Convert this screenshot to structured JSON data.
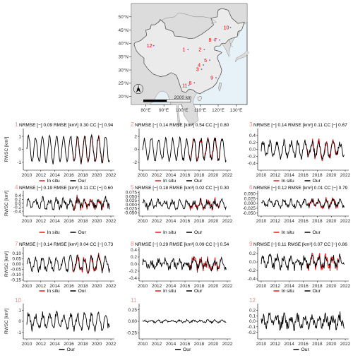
{
  "map": {
    "lat_labels": [
      "50°N",
      "45°N",
      "40°N",
      "35°N",
      "30°N",
      "25°N",
      "20°N"
    ],
    "lon_labels": [
      "80°E",
      "90°E",
      "100°E",
      "110°E",
      "120°E",
      "130°E"
    ],
    "scale_label": "2000 km",
    "north_label": "N",
    "sites": [
      {
        "id": "1",
        "lon": 101.0,
        "lat": 37.0
      },
      {
        "id": "2",
        "lon": 110.0,
        "lat": 37.0
      },
      {
        "id": "3",
        "lon": 108.5,
        "lat": 29.6
      },
      {
        "id": "4",
        "lon": 109.5,
        "lat": 31.2
      },
      {
        "id": "5",
        "lon": 113.0,
        "lat": 33.0
      },
      {
        "id": "6",
        "lon": 104.5,
        "lat": 24.5
      },
      {
        "id": "7",
        "lon": 118.5,
        "lat": 40.6
      },
      {
        "id": "8",
        "lon": 115.5,
        "lat": 40.6
      },
      {
        "id": "9",
        "lon": 116.5,
        "lat": 26.4
      },
      {
        "id": "10",
        "lon": 124.5,
        "lat": 45.3
      },
      {
        "id": "11",
        "lon": 101.5,
        "lat": 23.5
      },
      {
        "id": "12",
        "lon": 82.0,
        "lat": 38.5
      }
    ]
  },
  "axis_label": "RWSC [km³]",
  "x_ticks": [
    "2010",
    "2012",
    "2014",
    "2016",
    "2018",
    "2020",
    "2022"
  ],
  "legend": {
    "insitu": "In situ",
    "our": "Our"
  },
  "colors": {
    "insitu": "#e41a1c",
    "our": "#000000",
    "site_number": "#e08f8f"
  },
  "chart_data": [
    {
      "id": "1",
      "type": "line",
      "metrics": "NRMSE [−] 0.09 RMSE [km³] 0.30 CC [−] 0.94",
      "ylim": [
        -1.6,
        1.6
      ],
      "y_ticks": [
        "1",
        "0",
        "-1"
      ],
      "has_insitu": true,
      "amp": 1.0,
      "noise": 0.15,
      "period": 12,
      "start_year": 2010,
      "end_year": 2021.8,
      "seed": 1
    },
    {
      "id": "2",
      "type": "line",
      "metrics": "NRMSE [−] 0.14 RMSE [km³] 0.54 CC [−] 0.80",
      "ylim": [
        -3.2,
        3.2
      ],
      "y_ticks": [
        "2",
        "0",
        "-2"
      ],
      "has_insitu": true,
      "amp": 1.6,
      "noise": 0.4,
      "period": 12,
      "start_year": 2010,
      "end_year": 2021.8,
      "seed": 2
    },
    {
      "id": "3",
      "type": "line",
      "metrics": "NRMSE [−] 0.14 RMSE [km³] 0.11 CC [−] 0.67",
      "ylim": [
        -0.6,
        0.6
      ],
      "y_ticks": [
        "0.4",
        "0.2",
        "0.0",
        "-0.2",
        "-0.4"
      ],
      "has_insitu": true,
      "amp": 0.2,
      "noise": 0.1,
      "period": 12,
      "start_year": 2010,
      "end_year": 2021.8,
      "seed": 3
    },
    {
      "id": "4",
      "type": "line",
      "metrics": "NRMSE [−] 0.19 RMSE [km³] 0.11 CC [−] 0.60",
      "ylim": [
        -0.65,
        0.65
      ],
      "y_ticks": [
        "0.4",
        "0.2",
        "0.0",
        "-0.2",
        "-0.4"
      ],
      "has_insitu": true,
      "amp": 0.2,
      "noise": 0.18,
      "period": 12,
      "start_year": 2010,
      "end_year": 2021.8,
      "seed": 4
    },
    {
      "id": "5",
      "type": "line",
      "metrics": "NRMSE [−] 0.18 RMSE [km³] 0.02 CC [−] 0.30",
      "ylim": [
        -0.07,
        0.085
      ],
      "y_ticks": [
        "0.075",
        "0.050",
        "0.025",
        "0.000",
        "-0.025",
        "-0.050"
      ],
      "has_insitu": true,
      "amp": 0.02,
      "noise": 0.02,
      "period": 12,
      "start_year": 2010,
      "end_year": 2021.8,
      "seed": 5
    },
    {
      "id": "6",
      "type": "line",
      "metrics": "NRMSE [−] 0.12 RMSE [km³] 0.01 CC [−] 0.79",
      "ylim": [
        -0.065,
        0.065
      ],
      "y_ticks": [
        "0.050",
        "0.025",
        "0.000",
        "-0.025",
        "-0.050"
      ],
      "has_insitu": true,
      "amp": 0.015,
      "noise": 0.012,
      "period": 12,
      "start_year": 2010,
      "end_year": 2021.8,
      "seed": 6
    },
    {
      "id": "7",
      "type": "line",
      "metrics": "NRMSE [−] 0.14 RMSE [km³] 0.04 CC [−] 0.73",
      "ylim": [
        -0.16,
        0.16
      ],
      "y_ticks": [
        "0.10",
        "0.05",
        "0.00",
        "-0.05",
        "-0.10",
        "-0.15"
      ],
      "has_insitu": true,
      "amp": 0.06,
      "noise": 0.03,
      "period": 12,
      "start_year": 2010,
      "end_year": 2021.8,
      "seed": 7
    },
    {
      "id": "8",
      "type": "line",
      "metrics": "NRMSE [−] 0.29 RMSE [km³] 0.09 CC [−] 0.54",
      "ylim": [
        -0.48,
        0.48
      ],
      "y_ticks": [
        "0.4",
        "0.2",
        "0.0",
        "-0.2",
        "-0.4"
      ],
      "has_insitu": true,
      "amp": 0.1,
      "noise": 0.12,
      "period": 12,
      "start_year": 2010,
      "end_year": 2021.8,
      "seed": 8
    },
    {
      "id": "9",
      "type": "line",
      "metrics": "NRMSE [−] 0.11 RMSE [km³] 0.07 CC [−] 0.86",
      "ylim": [
        -0.45,
        0.35
      ],
      "y_ticks": [
        "0.2",
        "0.0",
        "-0.2",
        "-0.4"
      ],
      "has_insitu": true,
      "amp": 0.12,
      "noise": 0.1,
      "period": 12,
      "start_year": 2010,
      "end_year": 2021.8,
      "seed": 9
    },
    {
      "id": "10",
      "type": "line",
      "metrics": "",
      "ylim": [
        -1.6,
        1.6
      ],
      "y_ticks": [
        "1",
        "0",
        "-1"
      ],
      "has_insitu": false,
      "amp": 0.6,
      "noise": 0.35,
      "period": 12,
      "start_year": 2010,
      "end_year": 2021.8,
      "seed": 10
    },
    {
      "id": "11",
      "type": "line",
      "metrics": "",
      "ylim": [
        -0.38,
        0.38
      ],
      "y_ticks": [
        "0.25",
        "0.00",
        "-0.25"
      ],
      "has_insitu": false,
      "amp": 0.02,
      "noise": 0.02,
      "period": 12,
      "start_year": 2010,
      "end_year": 2021.8,
      "seed": 11
    },
    {
      "id": "12",
      "type": "line",
      "metrics": "",
      "ylim": [
        -0.32,
        0.32
      ],
      "y_ticks": [
        "0.2",
        "0.1",
        "0.0",
        "-0.1",
        "-0.2"
      ],
      "has_insitu": false,
      "amp": 0.08,
      "noise": 0.1,
      "period": 12,
      "start_year": 2010,
      "end_year": 2021.8,
      "seed": 12
    }
  ]
}
